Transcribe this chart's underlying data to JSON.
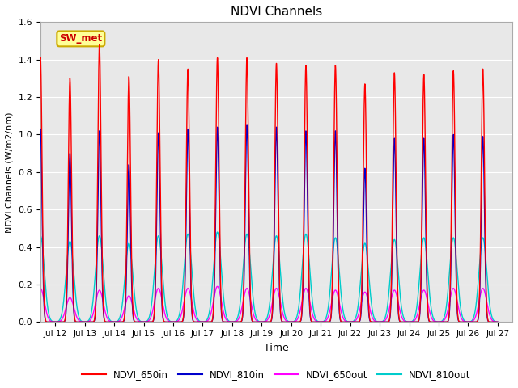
{
  "title": "NDVI Channels",
  "xlabel": "Time",
  "ylabel": "NDVI Channels (W/m2/nm)",
  "ylim": [
    0,
    1.6
  ],
  "yticks": [
    0.0,
    0.2,
    0.4,
    0.6,
    0.8,
    1.0,
    1.2,
    1.4,
    1.6
  ],
  "xtick_labels": [
    "Jul 12",
    "Jul 13",
    "Jul 14",
    "Jul 15",
    "Jul 16",
    "Jul 17",
    "Jul 18",
    "Jul 19",
    "Jul 20",
    "Jul 21",
    "Jul 22",
    "Jul 23",
    "Jul 24",
    "Jul 25",
    "Jul 26",
    "Jul 27"
  ],
  "annotation_text": "SW_met",
  "annotation_color": "#cc0000",
  "annotation_bg": "#ffff99",
  "annotation_border": "#ccaa00",
  "line_colors": {
    "NDVI_650in": "#ff0000",
    "NDVI_810in": "#0000cc",
    "NDVI_650out": "#ff00ff",
    "NDVI_810out": "#00cccc"
  },
  "peak_650in": [
    1.41,
    1.3,
    1.48,
    1.31,
    1.4,
    1.35,
    1.41,
    1.41,
    1.38,
    1.37,
    1.37,
    1.27,
    1.33,
    1.32,
    1.34,
    1.35
  ],
  "peak_810in": [
    1.03,
    0.9,
    1.02,
    0.84,
    1.01,
    1.03,
    1.04,
    1.05,
    1.04,
    1.02,
    1.02,
    0.82,
    0.98,
    0.98,
    1.0,
    0.99
  ],
  "peak_650out": [
    0.18,
    0.13,
    0.17,
    0.14,
    0.18,
    0.18,
    0.19,
    0.18,
    0.18,
    0.18,
    0.17,
    0.16,
    0.17,
    0.17,
    0.18,
    0.18
  ],
  "peak_810out": [
    0.46,
    0.43,
    0.46,
    0.42,
    0.46,
    0.47,
    0.48,
    0.47,
    0.46,
    0.47,
    0.45,
    0.42,
    0.44,
    0.45,
    0.45,
    0.45
  ],
  "plot_bg": "#e8e8e8",
  "fig_bg": "#ffffff",
  "linewidth_in": 1.0,
  "linewidth_out": 1.0
}
